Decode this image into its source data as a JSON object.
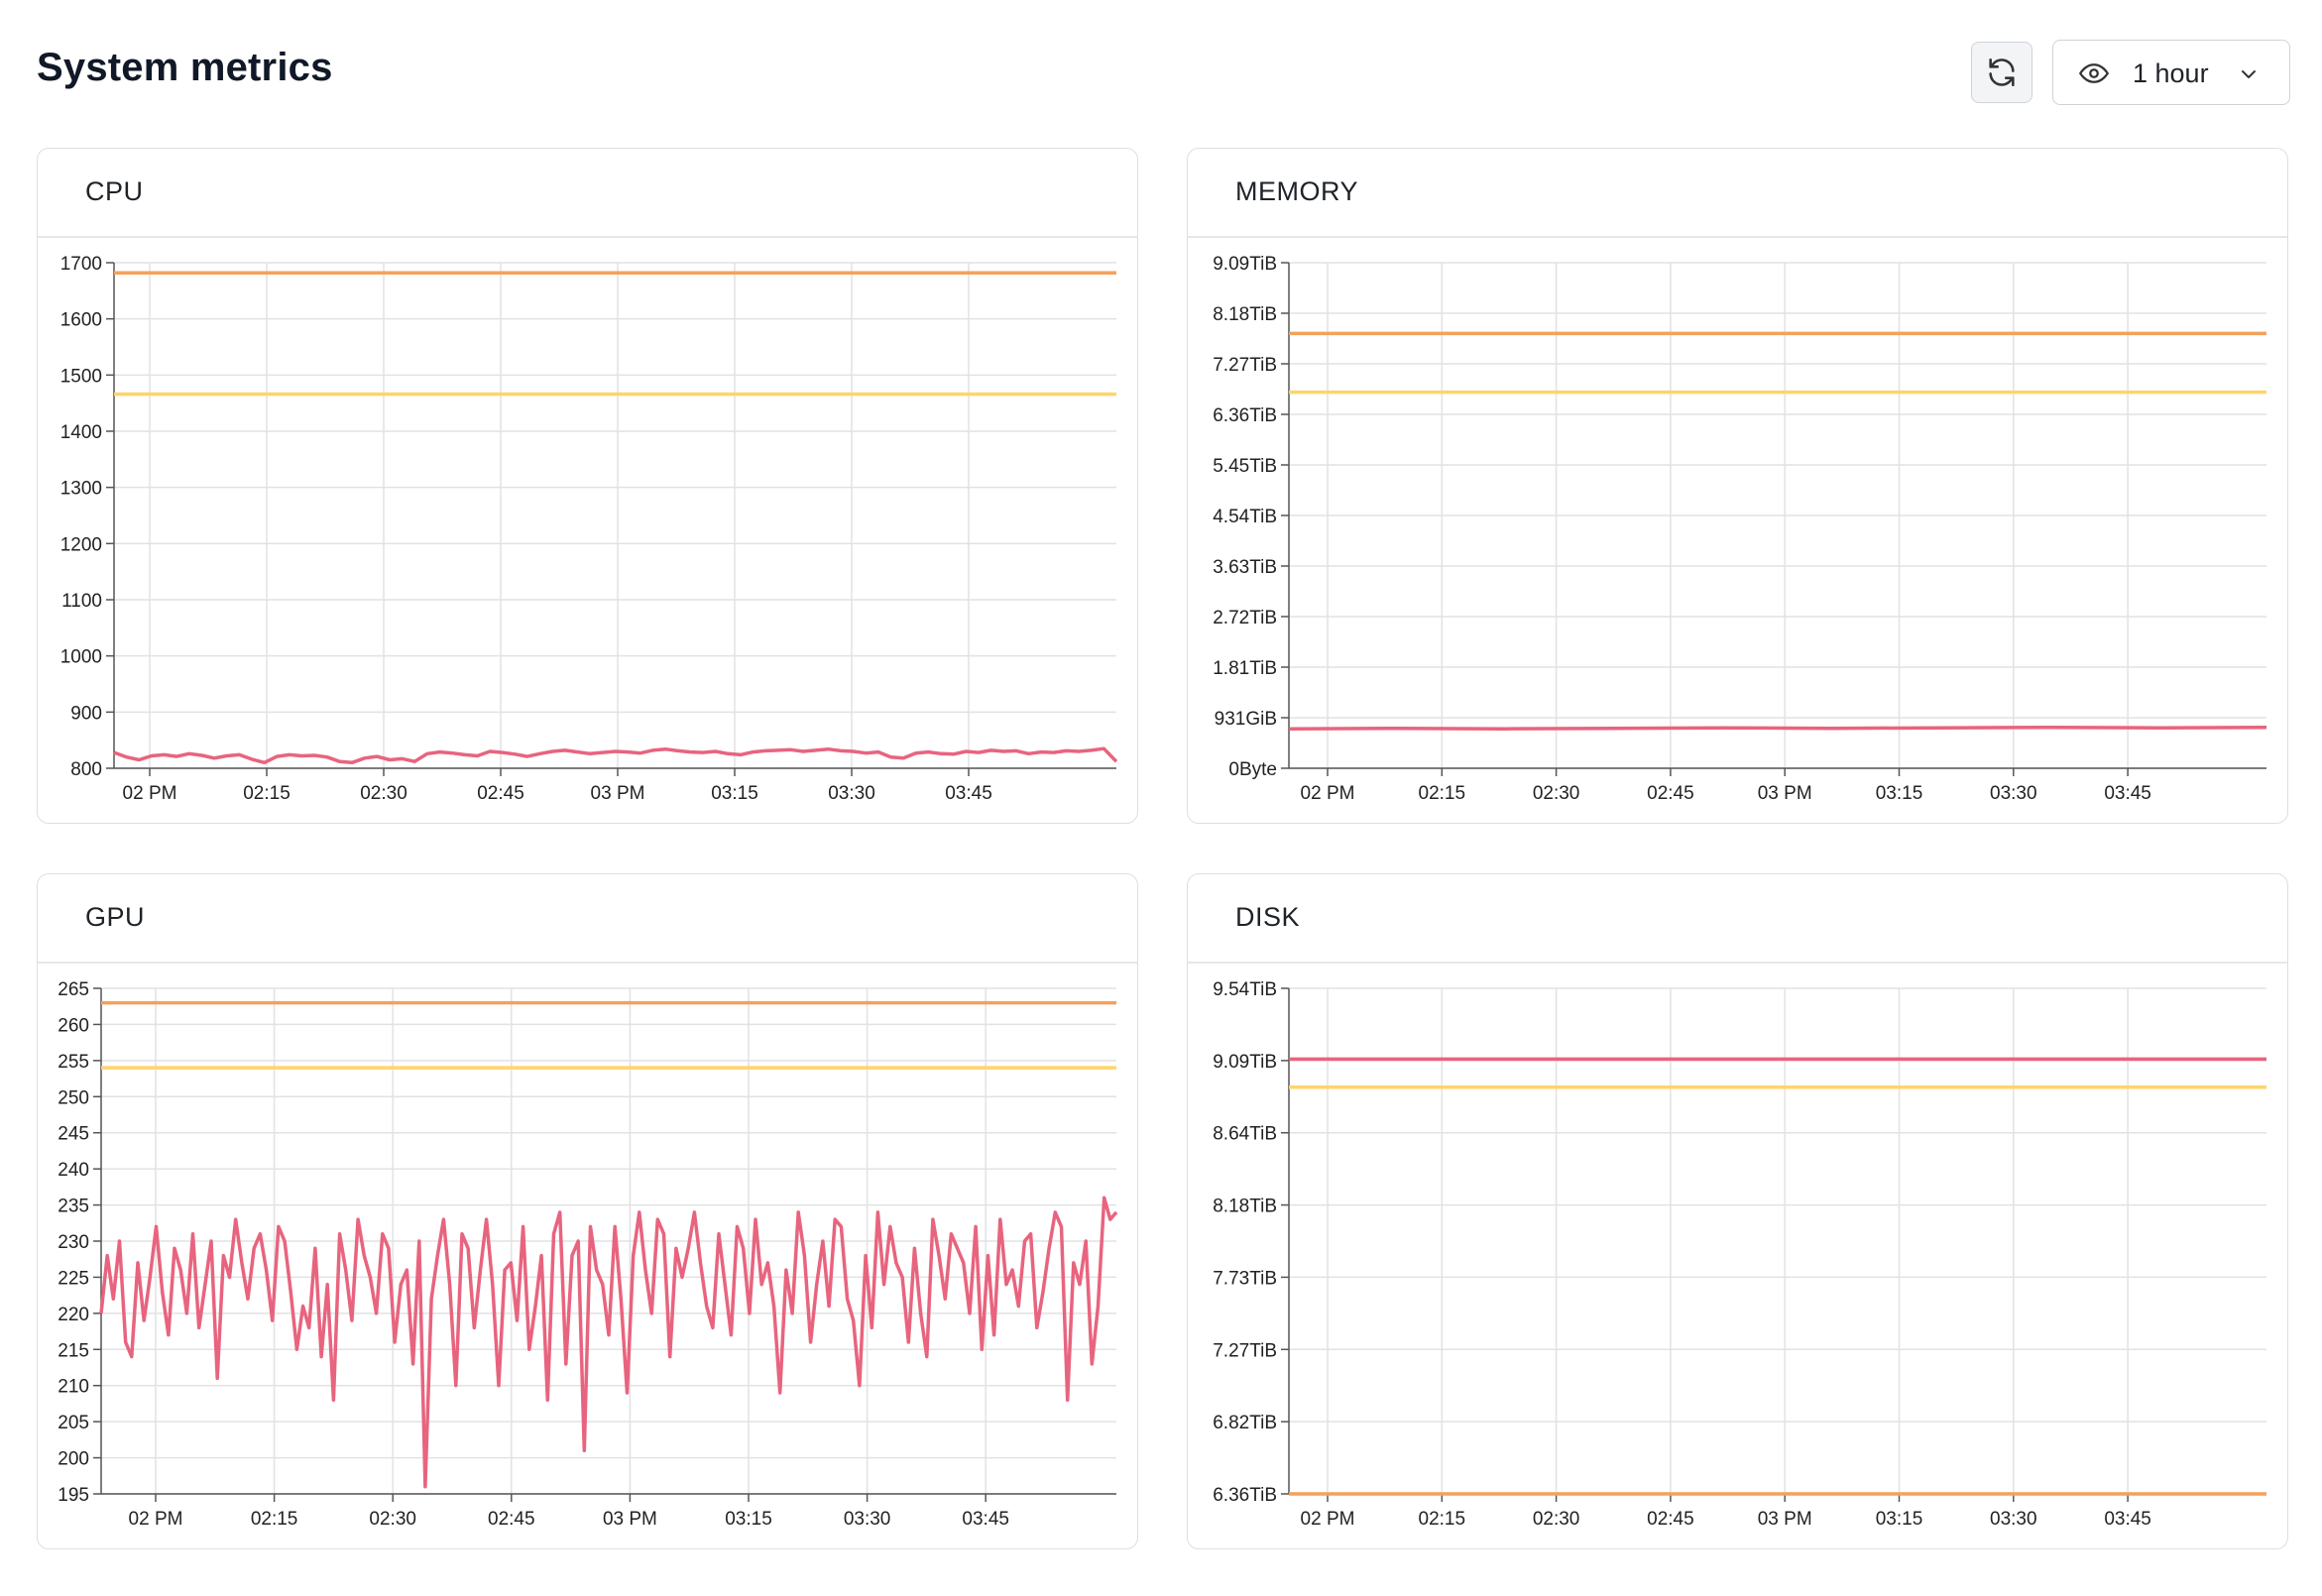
{
  "page": {
    "title": "System metrics",
    "refresh_icon": "refresh-icon",
    "range_icon": "eye-icon",
    "range_value": "1 hour",
    "range_chevron_icon": "chevron-down-icon"
  },
  "colors": {
    "line_red": "#e8647e",
    "line_orange": "#f4a15c",
    "line_yellow": "#ffd46a",
    "grid": "#e2e2e2",
    "axis": "#555555"
  },
  "x_ticks": [
    "02 PM",
    "02:15",
    "02:30",
    "02:45",
    "03 PM",
    "03:15",
    "03:30",
    "03:45"
  ],
  "charts": {
    "cpu": {
      "title": "CPU",
      "chart_data": {
        "type": "line",
        "title": "CPU",
        "x_range": [
          "13:45",
          "03:53"
        ],
        "y_ticks": [
          "800",
          "900",
          "1000",
          "1100",
          "1200",
          "1300",
          "1400",
          "1500",
          "1600",
          "1700"
        ],
        "ylim": [
          800,
          1700
        ],
        "grid": true,
        "series": [
          {
            "color": "#f4a15c",
            "values": [
              1682,
              1682
            ]
          },
          {
            "color": "#ffd46a",
            "values": [
              1466,
              1466
            ]
          },
          {
            "color": "#e8647e",
            "values": [
              828,
              820,
              815,
              822,
              824,
              821,
              826,
              823,
              818,
              822,
              824,
              816,
              810,
              821,
              824,
              822,
              823,
              820,
              812,
              810,
              818,
              821,
              815,
              817,
              812,
              826,
              829,
              827,
              824,
              822,
              830,
              828,
              825,
              821,
              826,
              830,
              832,
              829,
              826,
              828,
              830,
              829,
              827,
              832,
              834,
              831,
              829,
              828,
              830,
              826,
              824,
              829,
              831,
              832,
              833,
              830,
              832,
              834,
              831,
              830,
              827,
              829,
              820,
              818,
              827,
              829,
              826,
              825,
              830,
              828,
              832,
              830,
              831,
              826,
              829,
              828,
              831,
              830,
              832,
              835,
              812
            ]
          }
        ]
      }
    },
    "memory": {
      "title": "MEMORY",
      "chart_data": {
        "type": "line",
        "title": "MEMORY",
        "y_ticks": [
          "0Byte",
          "931GiB",
          "1.81TiB",
          "2.72TiB",
          "3.63TiB",
          "4.54TiB",
          "5.45TiB",
          "6.36TiB",
          "7.27TiB",
          "8.18TiB",
          "9.09TiB"
        ],
        "ylim": [
          0,
          10
        ],
        "grid": true,
        "series": [
          {
            "color": "#f4a15c",
            "values": [
              8.6,
              8.6
            ]
          },
          {
            "color": "#ffd46a",
            "values": [
              7.44,
              7.44
            ]
          },
          {
            "color": "#e8647e",
            "values": [
              0.78,
              0.79,
              0.78,
              0.79,
              0.8,
              0.79,
              0.8,
              0.81,
              0.8,
              0.81
            ]
          }
        ]
      }
    },
    "gpu": {
      "title": "GPU",
      "chart_data": {
        "type": "line",
        "title": "GPU",
        "y_ticks": [
          "195",
          "200",
          "205",
          "210",
          "215",
          "220",
          "225",
          "230",
          "235",
          "240",
          "245",
          "250",
          "255",
          "260",
          "265"
        ],
        "ylim": [
          195,
          265
        ],
        "grid": true,
        "series": [
          {
            "color": "#f4a15c",
            "values": [
              263,
              263
            ]
          },
          {
            "color": "#ffd46a",
            "values": [
              254,
              254
            ]
          },
          {
            "color": "#e8647e",
            "values": [
              220,
              228,
              222,
              230,
              216,
              214,
              227,
              219,
              225,
              232,
              223,
              217,
              229,
              226,
              220,
              231,
              218,
              224,
              230,
              211,
              228,
              225,
              233,
              227,
              222,
              229,
              231,
              226,
              219,
              232,
              230,
              223,
              215,
              221,
              218,
              229,
              214,
              224,
              208,
              231,
              226,
              219,
              233,
              228,
              225,
              220,
              231,
              229,
              216,
              224,
              226,
              213,
              230,
              196,
              222,
              228,
              233,
              224,
              210,
              231,
              229,
              218,
              226,
              233,
              224,
              210,
              226,
              227,
              219,
              232,
              215,
              221,
              228,
              208,
              231,
              234,
              213,
              228,
              230,
              201,
              232,
              226,
              224,
              217,
              232,
              222,
              209,
              228,
              234,
              226,
              220,
              233,
              231,
              214,
              229,
              225,
              229,
              234,
              227,
              221,
              218,
              231,
              224,
              217,
              232,
              229,
              220,
              233,
              224,
              227,
              221,
              209,
              226,
              220,
              234,
              228,
              216,
              224,
              230,
              221,
              233,
              232,
              222,
              219,
              210,
              228,
              218,
              234,
              224,
              232,
              227,
              225,
              216,
              229,
              220,
              214,
              233,
              228,
              222,
              231,
              229,
              227,
              220,
              232,
              215,
              228,
              217,
              233,
              224,
              226,
              221,
              230,
              231,
              218,
              223,
              229,
              234,
              232,
              208,
              227,
              224,
              230,
              213,
              221,
              236,
              233,
              234
            ]
          }
        ]
      }
    },
    "disk": {
      "title": "DISK",
      "chart_data": {
        "type": "line",
        "title": "DISK",
        "y_ticks": [
          "6.36TiB",
          "6.82TiB",
          "7.27TiB",
          "7.73TiB",
          "8.18TiB",
          "8.64TiB",
          "9.09TiB",
          "9.54TiB"
        ],
        "ylim": [
          0,
          7
        ],
        "grid": true,
        "series": [
          {
            "color": "#e8647e",
            "values": [
              6.02,
              6.02
            ]
          },
          {
            "color": "#ffd46a",
            "values": [
              5.63,
              5.63
            ]
          },
          {
            "color": "#f4a15c",
            "values": [
              0.0,
              0.0
            ]
          }
        ]
      }
    }
  }
}
